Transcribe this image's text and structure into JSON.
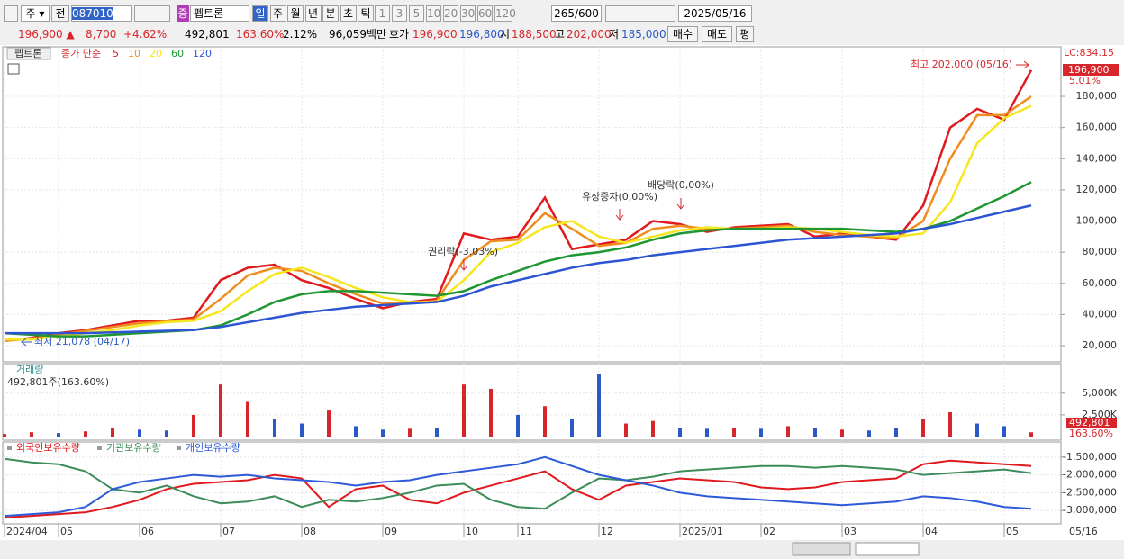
{
  "toolbar": {
    "period": "주",
    "all": "전",
    "code": "087010",
    "name": "펩트론",
    "badge": "증",
    "intervals": [
      "일",
      "주",
      "월",
      "년",
      "분",
      "초",
      "틱"
    ],
    "minutes": [
      "1",
      "3",
      "5",
      "10",
      "20",
      "30",
      "60",
      "120"
    ],
    "count": "265",
    "max_count": "/600",
    "date": "2025/05/16"
  },
  "quote": {
    "price": "196,900 ▲",
    "change": "8,700",
    "change_pct": "+4.62%",
    "volume": "492,801",
    "volume_ratio": "163.60%",
    "turnover": "2.12%",
    "amount": "96,059백만",
    "bid_ask_label": "호가",
    "ask": "196,900",
    "bid": "196,800",
    "open_label": "시",
    "open": "188,500",
    "high_label": "고",
    "high": "202,000",
    "low_label": "저",
    "low": "185,000",
    "buy": "매수",
    "sell": "매도",
    "avg": "평"
  },
  "chart_data": [
    {
      "type": "line",
      "title": "펩트론",
      "subtitle": "종가 단순",
      "categories": [
        "2024/04",
        null,
        "05",
        null,
        null,
        "06",
        null,
        null,
        "07",
        null,
        null,
        "08",
        null,
        null,
        "09",
        null,
        null,
        "10",
        null,
        "11",
        null,
        null,
        "12",
        null,
        null,
        "2025/01",
        null,
        null,
        "02",
        null,
        null,
        "03",
        null,
        null,
        "04",
        null,
        null,
        "05",
        null
      ],
      "x_end_label": "05/16",
      "series": [
        {
          "name": "5",
          "color": "#e0191e",
          "values": [
            23000,
            25000,
            28000,
            30000,
            33000,
            36000,
            36000,
            38000,
            62000,
            70000,
            72000,
            62000,
            57000,
            50000,
            44000,
            48000,
            50000,
            92000,
            88000,
            90000,
            115000,
            82000,
            85000,
            88000,
            100000,
            98000,
            93000,
            96000,
            97000,
            98000,
            90000,
            92000,
            90000,
            88000,
            110000,
            160000,
            172000,
            165000,
            196900
          ]
        },
        {
          "name": "10",
          "color": "#f08c1e",
          "values": [
            23000,
            24500,
            27000,
            29500,
            32000,
            34500,
            35500,
            37000,
            50000,
            65000,
            70000,
            68000,
            60000,
            53000,
            47000,
            47000,
            49000,
            75000,
            87000,
            88000,
            105000,
            95000,
            84000,
            86000,
            95000,
            97000,
            95000,
            95000,
            96000,
            97000,
            93000,
            91000,
            90000,
            89000,
            100000,
            140000,
            168000,
            168000,
            180000
          ]
        },
        {
          "name": "20",
          "color": "#f5e61e",
          "values": [
            24000,
            24000,
            26000,
            28000,
            30000,
            33000,
            35000,
            36000,
            42000,
            55000,
            66000,
            70000,
            64000,
            57000,
            51000,
            48000,
            48000,
            62000,
            80000,
            86000,
            96000,
            100000,
            90000,
            86000,
            90000,
            94000,
            96000,
            95000,
            95000,
            96000,
            95000,
            93000,
            91000,
            90000,
            92000,
            112000,
            150000,
            166000,
            174000
          ]
        },
        {
          "name": "60",
          "color": "#1e9632",
          "values": [
            28000,
            27000,
            26000,
            26000,
            27000,
            28000,
            29000,
            30000,
            33000,
            40000,
            48000,
            53000,
            55000,
            55000,
            54000,
            53000,
            52000,
            55000,
            62000,
            68000,
            74000,
            78000,
            80000,
            83000,
            88000,
            92000,
            94000,
            95000,
            95000,
            95000,
            95000,
            95000,
            94000,
            93000,
            95000,
            100000,
            108000,
            116000,
            125000
          ]
        },
        {
          "name": "120",
          "color": "#2d55d2",
          "values": [
            28000,
            28000,
            28000,
            28000,
            28500,
            29000,
            29500,
            30000,
            32000,
            35000,
            38000,
            41000,
            43000,
            45000,
            46000,
            47000,
            48000,
            52000,
            58000,
            62000,
            66000,
            70000,
            73000,
            75000,
            78000,
            80000,
            82000,
            84000,
            86000,
            88000,
            89000,
            90000,
            91000,
            92000,
            95000,
            98000,
            102000,
            106000,
            110000
          ]
        }
      ],
      "ylim": [
        9600,
        211800
      ],
      "yticks": [
        {
          "value": 20000,
          "label": "20,000"
        },
        {
          "value": 40000,
          "label": "40,000"
        },
        {
          "value": 60000,
          "label": "60,000"
        },
        {
          "value": 80000,
          "label": "80,000"
        },
        {
          "value": 100000,
          "label": "100,000"
        },
        {
          "value": 120000,
          "label": "120,000"
        },
        {
          "value": 140000,
          "label": "140,000"
        },
        {
          "value": 160000,
          "label": "160,000"
        },
        {
          "value": 180000,
          "label": "180,000"
        }
      ],
      "grid": true,
      "annotations": [
        "최고 202,000 (05/16)",
        "최저 21,078 (04/17)",
        "권리락(-3.03%)",
        "유상증자(0,00%)",
        "배당락(0,00%)"
      ],
      "right_labels": [
        "LC:834.15",
        "196,900",
        "5.01%"
      ]
    },
    {
      "type": "bar",
      "title": "거래량",
      "subtitle": "492,801주(163.60%)",
      "values": [
        300,
        500,
        400,
        600,
        1000,
        800,
        700,
        2500,
        6000,
        4000,
        2000,
        1500,
        3000,
        1200,
        800,
        900,
        1000,
        6000,
        5500,
        2500,
        3500,
        2000,
        7200,
        1500,
        1800,
        1000,
        900,
        1000,
        900,
        1200,
        1000,
        800,
        700,
        1000,
        2000,
        2800,
        1500,
        1200,
        492.801
      ],
      "value_labels": [
        null,
        null,
        null,
        null,
        null,
        null,
        null,
        null,
        null,
        null,
        null,
        null,
        null,
        null,
        null,
        null,
        null,
        null,
        null,
        null,
        null,
        null,
        null,
        null,
        null,
        null,
        null,
        null,
        null,
        null,
        null,
        null,
        null,
        null,
        null,
        null,
        null,
        null,
        "492,801"
      ],
      "colors": [
        "#d7262b",
        "#d7262b",
        "#2a58c6",
        "#d7262b",
        "#d7262b",
        "#2a58c6",
        "#2a58c6",
        "#d7262b",
        "#d7262b",
        "#d7262b",
        "#2a58c6",
        "#2a58c6",
        "#d7262b",
        "#2a58c6",
        "#2a58c6",
        "#d7262b",
        "#2a58c6",
        "#d7262b",
        "#d7262b",
        "#2a58c6",
        "#d7262b",
        "#2a58c6",
        "#2a58c6",
        "#d7262b",
        "#d7262b",
        "#2a58c6",
        "#2a58c6",
        "#d7262b",
        "#2a58c6",
        "#d7262b",
        "#2a58c6",
        "#d7262b",
        "#2a58c6",
        "#2a58c6",
        "#d7262b",
        "#d7262b",
        "#2a58c6",
        "#2a58c6",
        "#d7262b"
      ],
      "ratio_label": "163.60%",
      "ylim": [
        0,
        8400
      ],
      "yticks": [
        {
          "value": 2500,
          "label": "2,500K"
        },
        {
          "value": 5000,
          "label": "5,000K"
        }
      ]
    },
    {
      "type": "line",
      "series": [
        {
          "name": "외국인보유수량",
          "color": "#e0191e",
          "values": [
            -3200000,
            -3150000,
            -3100000,
            -3050000,
            -2900000,
            -2700000,
            -2400000,
            -2250000,
            -2200000,
            -2150000,
            -2000000,
            -2100000,
            -2900000,
            -2400000,
            -2300000,
            -2700000,
            -2800000,
            -2500000,
            -2300000,
            -2100000,
            -1900000,
            -2400000,
            -2700000,
            -2300000,
            -2200000,
            -2100000,
            -2150000,
            -2200000,
            -2350000,
            -2400000,
            -2350000,
            -2200000,
            -2150000,
            -2100000,
            -1700000,
            -1600000,
            -1650000,
            -1700000,
            -1750000
          ]
        },
        {
          "name": "기관보유수량",
          "color": "#3c8c5a",
          "values": [
            -1550000,
            -1650000,
            -1700000,
            -1900000,
            -2400000,
            -2500000,
            -2300000,
            -2600000,
            -2800000,
            -2750000,
            -2600000,
            -2900000,
            -2700000,
            -2750000,
            -2650000,
            -2500000,
            -2300000,
            -2250000,
            -2700000,
            -2900000,
            -2950000,
            -2500000,
            -2100000,
            -2150000,
            -2050000,
            -1900000,
            -1850000,
            -1800000,
            -1750000,
            -1750000,
            -1800000,
            -1750000,
            -1800000,
            -1850000,
            -2000000,
            -1950000,
            -1900000,
            -1850000,
            -1950000
          ]
        },
        {
          "name": "개인보유수량",
          "color": "#2d5ad7",
          "values": [
            -3150000,
            -3100000,
            -3050000,
            -2900000,
            -2400000,
            -2200000,
            -2100000,
            -2000000,
            -2050000,
            -2000000,
            -2100000,
            -2150000,
            -2200000,
            -2300000,
            -2200000,
            -2150000,
            -2000000,
            -1900000,
            -1800000,
            -1700000,
            -1500000,
            -1750000,
            -2000000,
            -2150000,
            -2300000,
            -2500000,
            -2600000,
            -2650000,
            -2700000,
            -2750000,
            -2800000,
            -2850000,
            -2800000,
            -2750000,
            -2600000,
            -2650000,
            -2750000,
            -2900000,
            -2950000
          ]
        }
      ],
      "ylim": [
        -3375000,
        -1075000
      ],
      "yticks": [
        {
          "value": -1500000,
          "label": "-1,500,000"
        },
        {
          "value": -2000000,
          "label": "-2,000,000"
        },
        {
          "value": -2500000,
          "label": "-2,500,000"
        },
        {
          "value": -3000000,
          "label": "-3,000,000"
        }
      ]
    }
  ]
}
